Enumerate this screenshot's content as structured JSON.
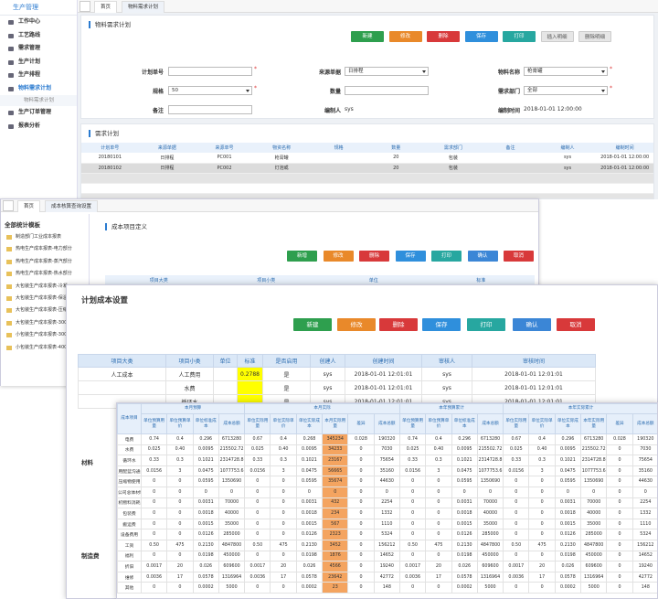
{
  "sidebar": {
    "title": "生产管理",
    "items": [
      "工作中心",
      "工艺路线",
      "需求管理",
      "生产计划",
      "生产排程",
      "物料需求计划",
      "生产订单管理",
      "报表分析"
    ],
    "subitem": "物料需求计划"
  },
  "tabs": [
    "首页",
    "物料需求计划"
  ],
  "form": {
    "title": "物料需求计划",
    "required_mark": "*",
    "buttons": [
      "新建",
      "修改",
      "删除",
      "保存",
      "打印",
      "插入明细",
      "删除明细"
    ],
    "fields": [
      {
        "label": "计划单号",
        "required": true
      },
      {
        "label": "来源单据",
        "value": "日排程",
        "select": true
      },
      {
        "label": "物料名称",
        "value": "枪膏罐",
        "select": true,
        "required": true
      },
      {
        "label": "规格",
        "value": "50",
        "select": true,
        "required": true
      },
      {
        "label": "数量"
      },
      {
        "label": "需求部门",
        "value": "全部",
        "select": true,
        "required": true
      },
      {
        "label": "备注"
      },
      {
        "label": "编制人",
        "value": "sys",
        "plain": true
      },
      {
        "label": "编制时间",
        "value": "2018-01-01 12:00:00",
        "plain": true
      }
    ]
  },
  "plan_table": {
    "title": "需求计划",
    "columns": [
      "计划单号",
      "来源单据",
      "来源单号",
      "物资名称",
      "规格",
      "数量",
      "需求部门",
      "备注",
      "编制人",
      "编制时间"
    ],
    "rows": [
      [
        "20180101",
        "日排程",
        "PC001",
        "枪膏罐",
        null,
        "20",
        "包装",
        null,
        "sys",
        "2018-01-01 12:00:00"
      ],
      [
        "20180102",
        "日排程",
        "PC002",
        "灯泡或",
        null,
        "20",
        "包装",
        null,
        "sys",
        "2018-01-01 12:00:00"
      ]
    ]
  },
  "window2": {
    "tabs": [
      "首页",
      "成本核算查询设置"
    ],
    "tree_title": "全部统计模板",
    "tree_items": [
      "制造部门工业成本报表",
      "热电生产成本报表-电力部分",
      "热电生产成本报表-蒸汽部分",
      "热电生产成本报表-热水部分",
      "大包装生产成本报表-冷凝",
      "大包装生产成本报表-保温",
      "大包装生产成本报表-压缩",
      "大包装生产成本报表-300",
      "小包装生产成本报表-300",
      "小包装生产成本报表-400"
    ],
    "panel_title": "成本项目定义",
    "buttons": [
      "新增",
      "修改",
      "删除",
      "保存",
      "打印",
      "确认",
      "取消"
    ],
    "columns": [
      "项目大类",
      "项目小类",
      "单位",
      "标准"
    ]
  },
  "window3": {
    "title": "计划成本设置",
    "buttons": [
      "新建",
      "修改",
      "删除",
      "保存",
      "打印",
      "确认",
      "取消"
    ],
    "columns": [
      "项目大类",
      "项目小类",
      "单位",
      "标准",
      "是否启用",
      "创建人",
      "创建时间",
      "审核人",
      "审核时间"
    ],
    "rows": [
      [
        "人工成本",
        "人工费用",
        null,
        "0.2788",
        "是",
        "sys",
        "2018-01-01 12:01:01",
        "sys",
        "2018-01-01 12:01:01"
      ],
      [
        null,
        "水费",
        null,
        null,
        "是",
        "sys",
        "2018-01-01 12:01:01",
        "sys",
        "2018-01-01 12:01:01"
      ],
      [
        null,
        "循环水",
        null,
        null,
        "是",
        "sys",
        "2018-01-01 12:01:01",
        "sys",
        "2018-01-01 12:01:01"
      ]
    ],
    "side_labels": [
      "材料",
      "制造费"
    ]
  },
  "window4": {
    "row_header": "成本项目",
    "groups": [
      {
        "label": "本月预算",
        "columns": [
          "单位预算用量",
          "单位预算单价",
          "单位标准成本",
          "成本总额"
        ]
      },
      {
        "label": "本月实际",
        "columns": [
          "单位实际用量",
          "单位实际单价",
          "单位实际成本",
          "本月实际用量",
          "差异",
          "成本总额"
        ]
      },
      {
        "label": "本年预算累计",
        "columns": [
          "单位预算用量",
          "单位预算单价",
          "单位标准成本",
          "成本总额"
        ]
      },
      {
        "label": "本年实际累计",
        "columns": [
          "单位实际用量",
          "单位实际单价",
          "单位实际成本",
          "本年实际用量",
          "差异",
          "成本总额"
        ]
      }
    ],
    "rows": [
      {
        "name": "电费",
        "values": [
          "0.74",
          "0.4",
          "0.296",
          "6713280",
          "0.67",
          "0.4",
          "0.268",
          "345234",
          "0.028",
          "190320",
          "0.74",
          "0.4",
          "0.296",
          "6713280",
          "0.67",
          "0.4",
          "0.296",
          "6713280",
          "0.028",
          "190320"
        ]
      },
      {
        "name": "水费",
        "values": [
          "0.025",
          "0.40",
          "0.0095",
          "215502.72",
          "0.025",
          "0.40",
          "0.0095",
          "34233",
          "0",
          "7030",
          "0.025",
          "0.40",
          "0.0095",
          "215502.72",
          "0.025",
          "0.40",
          "0.0095",
          "215502.72",
          "0",
          "7030"
        ]
      },
      {
        "name": "循环水",
        "values": [
          "0.33",
          "0.3",
          "0.1021",
          "2314728.8",
          "0.33",
          "0.3",
          "0.1021",
          "23167",
          "0",
          "75654",
          "0.33",
          "0.3",
          "0.1021",
          "2314728.8",
          "0.33",
          "0.3",
          "0.1021",
          "2314728.8",
          "0",
          "75654"
        ]
      },
      {
        "name": "用配蓝沟通",
        "values": [
          "0.0156",
          "3",
          "0.0475",
          "1077753.6",
          "0.0156",
          "3",
          "0.0475",
          "56665",
          "0",
          "35160",
          "0.0156",
          "3",
          "0.0475",
          "1077753.6",
          "0.0156",
          "3",
          "0.0475",
          "1077753.6",
          "0",
          "35160"
        ]
      },
      {
        "name": "压缩物使用",
        "values": [
          "0",
          "0",
          "0.0595",
          "1350690",
          "0",
          "0",
          "0.0595",
          "35674",
          "0",
          "44630",
          "0",
          "0",
          "0.0595",
          "1350690",
          "0",
          "0",
          "0.0595",
          "1350690",
          "0",
          "44630"
        ]
      },
      {
        "name": "公司总体材料",
        "values": [
          "0",
          "0",
          "0",
          "0",
          "0",
          "0",
          "0",
          "0",
          "0",
          "0",
          "0",
          "0",
          "0",
          "0",
          "0",
          "0",
          "0",
          "0",
          "0",
          "0"
        ]
      },
      {
        "name": "机物料消耗",
        "values": [
          "0",
          "0",
          "0.0031",
          "70000",
          "0",
          "0",
          "0.0031",
          "432",
          "0",
          "2254",
          "0",
          "0",
          "0.0031",
          "70000",
          "0",
          "0",
          "0.0031",
          "70000",
          "0",
          "2254"
        ]
      },
      {
        "name": "包装费",
        "values": [
          "0",
          "0",
          "0.0018",
          "40000",
          "0",
          "0",
          "0.0018",
          "234",
          "0",
          "1332",
          "0",
          "0",
          "0.0018",
          "40000",
          "0",
          "0",
          "0.0018",
          "40000",
          "0",
          "1332"
        ]
      },
      {
        "name": "搬运费",
        "values": [
          "0",
          "0",
          "0.0015",
          "35000",
          "0",
          "0",
          "0.0015",
          "567",
          "0",
          "1110",
          "0",
          "0",
          "0.0015",
          "35000",
          "0",
          "0",
          "0.0015",
          "35000",
          "0",
          "1110"
        ]
      },
      {
        "name": "设备费用",
        "values": [
          "0",
          "0",
          "0.0126",
          "285000",
          "0",
          "0",
          "0.0126",
          "2323",
          "0",
          "5324",
          "0",
          "0",
          "0.0126",
          "285000",
          "0",
          "0",
          "0.0126",
          "285000",
          "0",
          "5324"
        ]
      },
      {
        "name": "工资",
        "values": [
          "0.50",
          "475",
          "0.2130",
          "4847800",
          "0.50",
          "475",
          "0.2130",
          "3452",
          "0",
          "156212",
          "0.50",
          "475",
          "0.2130",
          "4847800",
          "0.50",
          "475",
          "0.2130",
          "4847800",
          "0",
          "156212"
        ]
      },
      {
        "name": "福利",
        "values": [
          "0",
          "0",
          "0.0198",
          "450000",
          "0",
          "0",
          "0.0198",
          "1876",
          "0",
          "14652",
          "0",
          "0",
          "0.0198",
          "450000",
          "0",
          "0",
          "0.0198",
          "450000",
          "0",
          "14652"
        ]
      },
      {
        "name": "折旧",
        "values": [
          "0.0017",
          "20",
          "0.026",
          "609600",
          "0.0017",
          "20",
          "0.026",
          "4566",
          "0",
          "19240",
          "0.0017",
          "20",
          "0.026",
          "609600",
          "0.0017",
          "20",
          "0.026",
          "609600",
          "0",
          "19240"
        ]
      },
      {
        "name": "维修",
        "values": [
          "0.0036",
          "17",
          "0.0578",
          "1316964",
          "0.0036",
          "17",
          "0.0578",
          "23642",
          "0",
          "42772",
          "0.0036",
          "17",
          "0.0578",
          "1316964",
          "0.0036",
          "17",
          "0.0578",
          "1316964",
          "0",
          "42772"
        ]
      },
      {
        "name": "其他",
        "values": [
          "0",
          "0",
          "0.0002",
          "5000",
          "0",
          "0",
          "0.0002",
          "23",
          "0",
          "148",
          "0",
          "0",
          "0.0002",
          "5000",
          "0",
          "0",
          "0.0002",
          "5000",
          "0",
          "148"
        ]
      }
    ]
  }
}
